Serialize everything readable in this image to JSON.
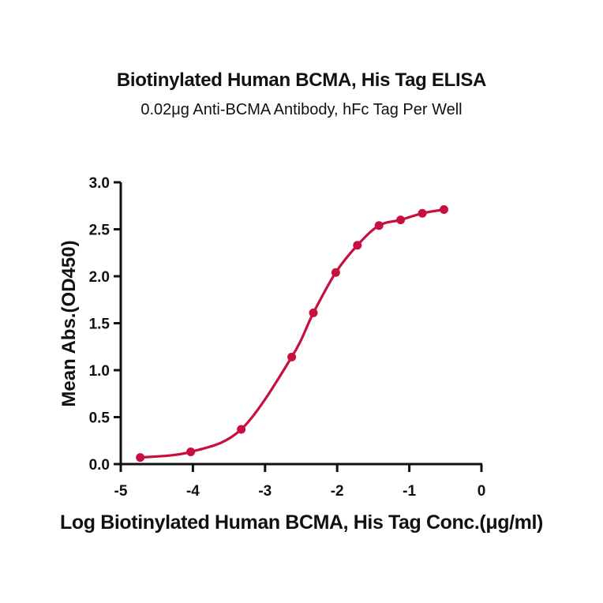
{
  "chart_data": {
    "type": "line",
    "title": "Biotinylated Human BCMA, His Tag ELISA",
    "subtitle": "0.02μg Anti-BCMA Antibody, hFc Tag Per Well",
    "xlabel": "Log Biotinylated Human BCMA, His Tag Conc.(μg/ml)",
    "ylabel": "Mean Abs.(OD450)",
    "xlim": [
      -5,
      0
    ],
    "ylim": [
      0,
      3.0
    ],
    "x_ticks": [
      "-5",
      "-4",
      "-3",
      "-2",
      "-1",
      "0"
    ],
    "y_ticks": [
      "0.0",
      "0.5",
      "1.0",
      "1.5",
      "2.0",
      "2.5",
      "3.0"
    ],
    "grid": false,
    "legend": null,
    "series": [
      {
        "name": "Biotinylated Human BCMA, His Tag",
        "color": "#c8103e",
        "fit": "4PL sigmoid curve",
        "x": [
          -4.73,
          -4.03,
          -3.33,
          -2.63,
          -2.33,
          -2.02,
          -1.72,
          -1.42,
          -1.12,
          -0.82,
          -0.52
        ],
        "y": [
          0.07,
          0.13,
          0.37,
          1.14,
          1.61,
          2.04,
          2.33,
          2.54,
          2.6,
          2.67,
          2.71
        ]
      }
    ]
  }
}
